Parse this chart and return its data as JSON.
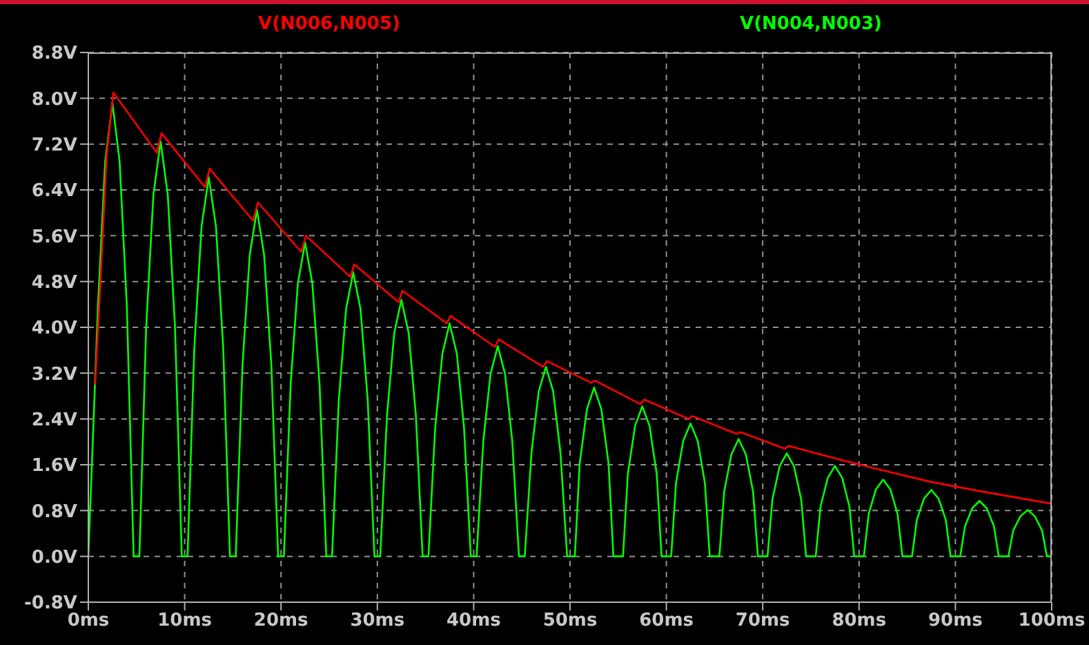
{
  "chart_data": {
    "type": "line",
    "xlim": [
      0,
      100
    ],
    "ylim": [
      -0.8,
      8.8
    ],
    "xticks": [
      {
        "value": 0,
        "label": "0ms"
      },
      {
        "value": 10,
        "label": "10ms"
      },
      {
        "value": 20,
        "label": "20ms"
      },
      {
        "value": 30,
        "label": "30ms"
      },
      {
        "value": 40,
        "label": "40ms"
      },
      {
        "value": 50,
        "label": "50ms"
      },
      {
        "value": 60,
        "label": "60ms"
      },
      {
        "value": 70,
        "label": "70ms"
      },
      {
        "value": 80,
        "label": "80ms"
      },
      {
        "value": 90,
        "label": "90ms"
      },
      {
        "value": 100,
        "label": "100ms"
      }
    ],
    "yticks": [
      {
        "value": -0.8,
        "label": "-0.8V"
      },
      {
        "value": 0,
        "label": "0.0V"
      },
      {
        "value": 0.8,
        "label": "0.8V"
      },
      {
        "value": 1.6,
        "label": "1.6V"
      },
      {
        "value": 2.4,
        "label": "2.4V"
      },
      {
        "value": 3.2,
        "label": "3.2V"
      },
      {
        "value": 4.0,
        "label": "4.0V"
      },
      {
        "value": 4.8,
        "label": "4.8V"
      },
      {
        "value": 5.6,
        "label": "5.6V"
      },
      {
        "value": 6.4,
        "label": "6.4V"
      },
      {
        "value": 7.2,
        "label": "7.2V"
      },
      {
        "value": 8.0,
        "label": "8.0V"
      },
      {
        "value": 8.8,
        "label": "8.8V"
      }
    ],
    "grid": true,
    "legend": "top",
    "marker": "none",
    "line_style": "solid",
    "series": [
      {
        "name": "V(N006,N005)",
        "color": "#ff0000",
        "x": [
          0.7,
          1.2,
          1.9,
          2.6,
          7.1,
          7.6,
          12.1,
          12.6,
          17.1,
          17.6,
          22.1,
          22.6,
          27.2,
          27.6,
          32.2,
          32.6,
          37.2,
          37.6,
          42.2,
          42.6,
          47.2,
          47.6,
          52.2,
          52.6,
          57.3,
          57.7,
          62.3,
          62.7,
          67.3,
          67.7,
          72.3,
          72.7,
          78,
          82.5,
          87.5,
          92.5,
          100
        ],
        "values": [
          3.0,
          4.6,
          7.0,
          8.1,
          7.05,
          7.39,
          6.45,
          6.77,
          5.86,
          6.18,
          5.32,
          5.6,
          4.88,
          5.1,
          4.44,
          4.64,
          4.07,
          4.2,
          3.66,
          3.79,
          3.31,
          3.41,
          3.03,
          3.07,
          2.66,
          2.74,
          2.4,
          2.45,
          2.14,
          2.17,
          1.88,
          1.93,
          1.69,
          1.5,
          1.3,
          1.14,
          0.92
        ]
      },
      {
        "name": "V(N004,N003)",
        "color": "#00ff00",
        "x": [
          0,
          1,
          1.75,
          2.5,
          3.25,
          4,
          4.7,
          5.3,
          6,
          6.75,
          7.5,
          8.25,
          9,
          9.7,
          10.3,
          11,
          11.75,
          12.5,
          13.25,
          14,
          14.7,
          15.3,
          16,
          16.75,
          17.5,
          18.25,
          19,
          19.7,
          20.3,
          21,
          21.75,
          22.5,
          23.25,
          24,
          24.7,
          25.3,
          26,
          26.75,
          27.5,
          28.25,
          29,
          29.7,
          30.3,
          31,
          31.75,
          32.5,
          33.25,
          34,
          34.7,
          35.3,
          36,
          36.75,
          37.5,
          38.25,
          39,
          39.7,
          40.3,
          41,
          41.75,
          42.5,
          43.25,
          44,
          44.7,
          45.3,
          46,
          46.75,
          47.5,
          48.25,
          49,
          49.7,
          50.5,
          51,
          51.75,
          52.5,
          53.25,
          54,
          54.5,
          55.5,
          56,
          56.75,
          57.5,
          58.25,
          59,
          59.5,
          60.5,
          61,
          61.75,
          62.5,
          63.25,
          64,
          64.5,
          65.5,
          66,
          66.75,
          67.5,
          68.25,
          69,
          69.5,
          70.5,
          71,
          71.75,
          72.5,
          73.25,
          74,
          74.5,
          75.5,
          76,
          76.75,
          77.5,
          78.25,
          79,
          79.5,
          80.5,
          81,
          81.75,
          82.5,
          83.25,
          84,
          84.5,
          85.5,
          86,
          86.75,
          87.5,
          88.25,
          89,
          89.5,
          90.5,
          91,
          91.75,
          92.5,
          93.25,
          94,
          94.5,
          95.5,
          96,
          96.75,
          97.5,
          98.25,
          99,
          99.5,
          100
        ],
        "values": [
          0,
          4.36,
          6.89,
          7.92,
          6.89,
          4.36,
          0,
          0,
          3.99,
          6.31,
          7.25,
          6.31,
          3.99,
          0,
          0,
          3.64,
          5.76,
          6.62,
          5.76,
          3.64,
          0,
          0,
          3.33,
          5.26,
          6.05,
          5.26,
          3.33,
          0,
          0,
          3.01,
          4.77,
          5.48,
          4.77,
          3.01,
          0,
          0,
          2.73,
          4.32,
          4.96,
          4.32,
          2.73,
          0,
          0,
          2.46,
          3.9,
          4.48,
          3.9,
          2.46,
          0,
          0,
          2.24,
          3.54,
          4.07,
          3.54,
          2.24,
          0,
          0,
          2.02,
          3.19,
          3.67,
          3.19,
          2.02,
          0,
          0,
          1.82,
          2.88,
          3.31,
          2.88,
          1.82,
          0,
          0,
          1.62,
          2.57,
          2.95,
          2.57,
          1.62,
          0,
          0,
          1.44,
          2.28,
          2.62,
          2.28,
          1.44,
          0,
          0,
          1.28,
          2.02,
          2.32,
          2.02,
          1.28,
          0,
          0,
          1.13,
          1.78,
          2.05,
          1.78,
          1.13,
          0,
          0,
          0.99,
          1.57,
          1.8,
          1.57,
          0.99,
          0,
          0,
          0.87,
          1.37,
          1.58,
          1.37,
          0.87,
          0,
          0,
          0.74,
          1.17,
          1.34,
          1.17,
          0.74,
          0,
          0,
          0.64,
          1.01,
          1.16,
          1.01,
          0.64,
          0,
          0,
          0.53,
          0.84,
          0.97,
          0.84,
          0.53,
          0,
          0,
          0.45,
          0.7,
          0.81,
          0.7,
          0.45,
          0,
          0
        ]
      }
    ]
  }
}
